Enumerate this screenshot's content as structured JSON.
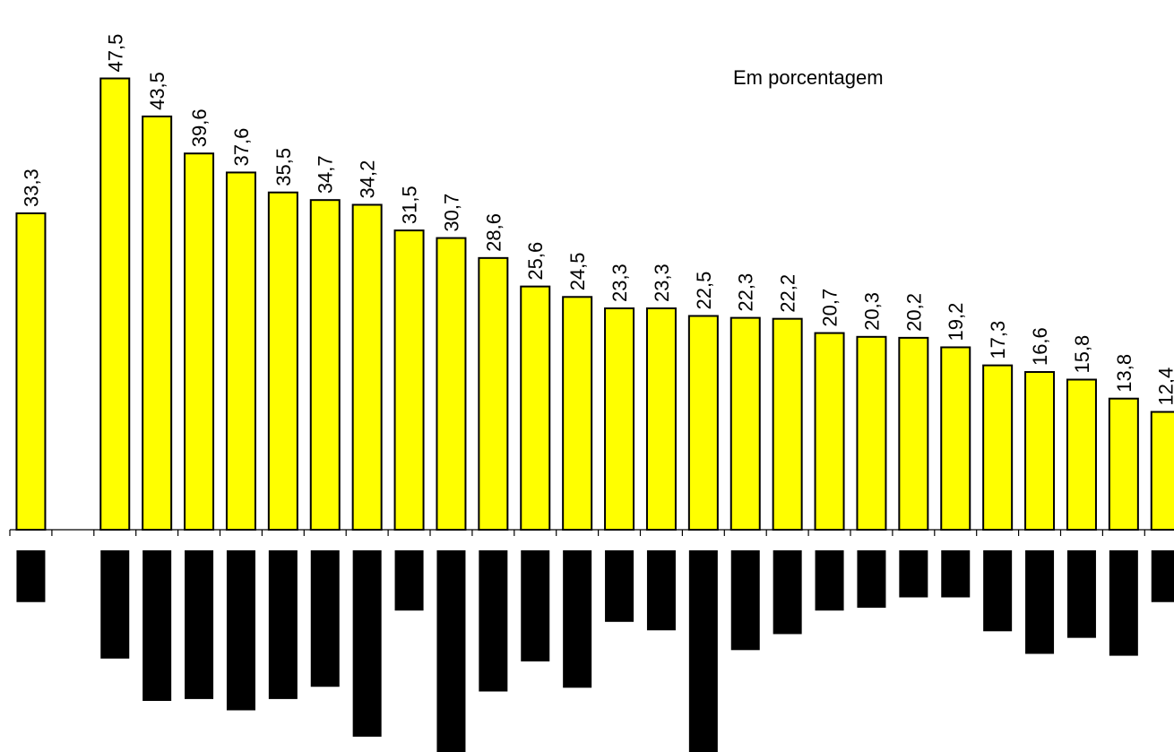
{
  "chart_data": {
    "type": "bar",
    "unit_label": "Em porcentagem",
    "categories": [
      "",
      "",
      "",
      "",
      "",
      "",
      "",
      "",
      "",
      "",
      "",
      "",
      "",
      "",
      "",
      "",
      "",
      "",
      "",
      "",
      "",
      "",
      "",
      "",
      "",
      "",
      "",
      ""
    ],
    "series": [
      {
        "values": [
          33.3,
          null,
          47.5,
          43.5,
          39.6,
          37.6,
          35.5,
          34.7,
          34.2,
          31.5,
          30.7,
          28.6,
          25.6,
          24.5,
          23.3,
          23.3,
          22.5,
          22.3,
          22.2,
          20.7,
          20.3,
          20.2,
          19.2,
          17.3,
          16.6,
          15.8,
          13.8,
          12.4
        ],
        "data_labels": [
          "33,3",
          "",
          "47,5",
          "43,5",
          "39,6",
          "37,6",
          "35,5",
          "34,7",
          "34,2",
          "31,5",
          "30,7",
          "28,6",
          "25,6",
          "24,5",
          "23,3",
          "23,3",
          "22,5",
          "22,3",
          "22,2",
          "20,7",
          "20,3",
          "20,2",
          "19,2",
          "17,3",
          "16,6",
          "15,8",
          "13,8",
          "12,4"
        ],
        "color": "#ffff00",
        "border_color": "#000000"
      },
      {
        "values": [
          -5.5,
          null,
          -11.5,
          -16,
          -15.8,
          -17,
          -15.8,
          -14.5,
          -19.8,
          -6.4,
          -22.3,
          -15,
          -11.8,
          -14.6,
          -7.6,
          -8.5,
          -22,
          -10.6,
          -8.9,
          -6.4,
          -6.1,
          -5,
          -5,
          -8.6,
          -11,
          -9.3,
          -11.2,
          -5.5
        ],
        "color": "#000000"
      }
    ],
    "ylim": [
      -25,
      50
    ],
    "grid": false,
    "legend": "none"
  }
}
